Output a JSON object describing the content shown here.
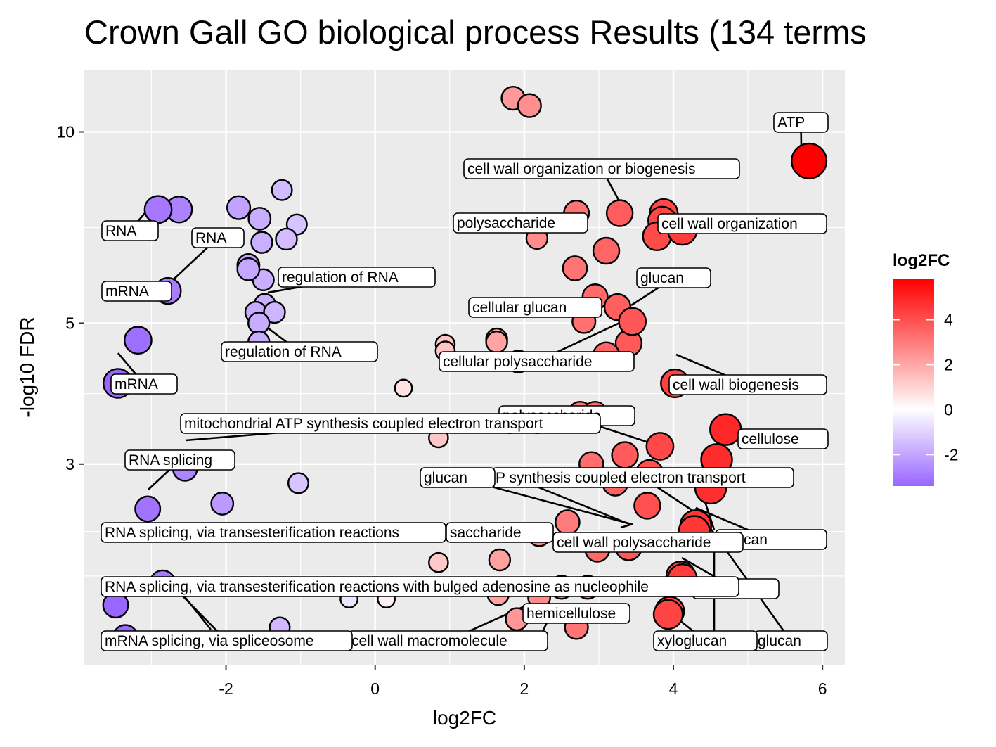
{
  "chart_data": {
    "type": "scatter",
    "title": "Crown Gall GO biological process Results (134 terms",
    "xlabel": "log2FC",
    "ylabel": "-log10 FDR",
    "x_ticks": [
      -2,
      0,
      2,
      4,
      6
    ],
    "y_ticks": [
      3,
      5,
      10
    ],
    "xlim": [
      -3.9,
      6.3
    ],
    "y_scale": "log",
    "ylim": [
      1.45,
      12.5
    ],
    "grid": true,
    "legend": {
      "title": "log2FC",
      "type": "colorbar",
      "ticks": [
        -2,
        0,
        2,
        4
      ],
      "range": [
        -3.4,
        5.8
      ],
      "low_color": "#9966ff",
      "mid_color": "#ffffff",
      "high_color": "#ff0000",
      "placement": "right"
    },
    "points": [
      {
        "x": 5.82,
        "y": 9.0,
        "size": 2.4
      },
      {
        "x": 1.85,
        "y": 11.3,
        "size": 1.2
      },
      {
        "x": 2.07,
        "y": 11.0,
        "size": 1.2
      },
      {
        "x": -2.91,
        "y": 7.55,
        "size": 1.6
      },
      {
        "x": -2.63,
        "y": 7.55,
        "size": 1.5
      },
      {
        "x": -1.83,
        "y": 7.6,
        "size": 1.2
      },
      {
        "x": -1.25,
        "y": 8.1,
        "size": 0.9
      },
      {
        "x": -1.55,
        "y": 7.3,
        "size": 1.1
      },
      {
        "x": -1.05,
        "y": 7.15,
        "size": 0.9
      },
      {
        "x": -1.52,
        "y": 6.7,
        "size": 1.0
      },
      {
        "x": -1.19,
        "y": 6.78,
        "size": 1.0
      },
      {
        "x": -2.78,
        "y": 5.62,
        "size": 1.5
      },
      {
        "x": -3.18,
        "y": 4.7,
        "size": 1.6
      },
      {
        "x": -3.45,
        "y": 4.02,
        "size": 1.8
      },
      {
        "x": -1.7,
        "y": 6.17,
        "size": 1.1
      },
      {
        "x": -1.7,
        "y": 6.08,
        "size": 1.1
      },
      {
        "x": -1.5,
        "y": 5.85,
        "size": 1.0
      },
      {
        "x": -1.48,
        "y": 5.35,
        "size": 1.0
      },
      {
        "x": -1.6,
        "y": 5.2,
        "size": 1.0
      },
      {
        "x": -1.35,
        "y": 5.2,
        "size": 1.0
      },
      {
        "x": -1.56,
        "y": 5.0,
        "size": 1.0
      },
      {
        "x": -1.56,
        "y": 4.67,
        "size": 1.0
      },
      {
        "x": 0.38,
        "y": 3.95,
        "size": 0.6
      },
      {
        "x": 0.94,
        "y": 4.63,
        "size": 0.8
      },
      {
        "x": 0.94,
        "y": 4.52,
        "size": 0.8
      },
      {
        "x": 1.63,
        "y": 4.72,
        "size": 1.0
      },
      {
        "x": 1.63,
        "y": 4.67,
        "size": 1.0
      },
      {
        "x": 1.92,
        "y": 4.35,
        "size": 1.1
      },
      {
        "x": 0.85,
        "y": 3.3,
        "size": 0.8
      },
      {
        "x": 1.8,
        "y": 3.5,
        "size": 1.2
      },
      {
        "x": 2.17,
        "y": 3.5,
        "size": 1.2
      },
      {
        "x": -2.05,
        "y": 2.6,
        "size": 1.1
      },
      {
        "x": -1.03,
        "y": 2.8,
        "size": 0.9
      },
      {
        "x": -2.55,
        "y": 2.95,
        "size": 1.3
      },
      {
        "x": -3.05,
        "y": 2.55,
        "size": 1.4
      },
      {
        "x": 2.7,
        "y": 7.45,
        "size": 1.4
      },
      {
        "x": 3.28,
        "y": 7.45,
        "size": 1.5
      },
      {
        "x": 3.87,
        "y": 7.45,
        "size": 1.7
      },
      {
        "x": 3.85,
        "y": 7.25,
        "size": 1.7
      },
      {
        "x": 4.12,
        "y": 7.0,
        "size": 1.8
      },
      {
        "x": 3.78,
        "y": 6.85,
        "size": 1.7
      },
      {
        "x": 2.17,
        "y": 6.8,
        "size": 1.0
      },
      {
        "x": 3.1,
        "y": 6.5,
        "size": 1.5
      },
      {
        "x": 2.68,
        "y": 6.1,
        "size": 1.3
      },
      {
        "x": 2.95,
        "y": 5.5,
        "size": 1.4
      },
      {
        "x": 3.25,
        "y": 5.3,
        "size": 1.5
      },
      {
        "x": 3.45,
        "y": 5.03,
        "size": 1.6
      },
      {
        "x": 2.8,
        "y": 5.03,
        "size": 1.2
      },
      {
        "x": 3.4,
        "y": 4.65,
        "size": 1.5
      },
      {
        "x": 3.1,
        "y": 4.45,
        "size": 1.5
      },
      {
        "x": 4.02,
        "y": 4.02,
        "size": 1.7
      },
      {
        "x": 2.75,
        "y": 3.6,
        "size": 1.3
      },
      {
        "x": 2.95,
        "y": 3.6,
        "size": 1.3
      },
      {
        "x": 4.7,
        "y": 3.4,
        "size": 2.0
      },
      {
        "x": 3.82,
        "y": 3.2,
        "size": 1.6
      },
      {
        "x": 4.58,
        "y": 3.05,
        "size": 2.0
      },
      {
        "x": 3.35,
        "y": 3.1,
        "size": 1.5
      },
      {
        "x": 2.9,
        "y": 3.0,
        "size": 1.3
      },
      {
        "x": 3.68,
        "y": 2.9,
        "size": 1.6
      },
      {
        "x": 3.22,
        "y": 2.8,
        "size": 1.4
      },
      {
        "x": 4.5,
        "y": 2.75,
        "size": 2.0
      },
      {
        "x": 3.65,
        "y": 2.58,
        "size": 1.5
      },
      {
        "x": 4.3,
        "y": 2.4,
        "size": 2.0
      },
      {
        "x": 4.28,
        "y": 2.35,
        "size": 2.0
      },
      {
        "x": 2.58,
        "y": 2.43,
        "size": 1.3
      },
      {
        "x": 2.2,
        "y": 2.32,
        "size": 1.1
      },
      {
        "x": 3.4,
        "y": 2.22,
        "size": 1.5
      },
      {
        "x": 2.98,
        "y": 2.2,
        "size": 1.3
      },
      {
        "x": 1.67,
        "y": 2.12,
        "size": 1.0
      },
      {
        "x": 0.85,
        "y": 2.1,
        "size": 0.8
      },
      {
        "x": 4.1,
        "y": 2.0,
        "size": 1.8
      },
      {
        "x": 4.12,
        "y": 1.98,
        "size": 1.8
      },
      {
        "x": -2.85,
        "y": 1.95,
        "size": 1.4
      },
      {
        "x": -3.48,
        "y": 1.8,
        "size": 1.4
      },
      {
        "x": 2.5,
        "y": 1.92,
        "size": 1.2
      },
      {
        "x": 2.85,
        "y": 1.92,
        "size": 1.2
      },
      {
        "x": 2.2,
        "y": 1.85,
        "size": 1.1
      },
      {
        "x": 1.65,
        "y": 1.87,
        "size": 1.0
      },
      {
        "x": -0.35,
        "y": 1.84,
        "size": 0.6
      },
      {
        "x": 0.15,
        "y": 1.84,
        "size": 0.6
      },
      {
        "x": 3.95,
        "y": 1.76,
        "size": 1.8
      },
      {
        "x": 3.93,
        "y": 1.74,
        "size": 1.8
      },
      {
        "x": 1.9,
        "y": 1.71,
        "size": 1.1
      },
      {
        "x": 2.7,
        "y": 1.66,
        "size": 1.2
      },
      {
        "x": -1.28,
        "y": 1.66,
        "size": 0.9
      },
      {
        "x": -3.35,
        "y": 1.6,
        "size": 1.4
      }
    ],
    "labels": [
      {
        "text": "ATP"
      },
      {
        "text": "cell wall organization or biogenesis"
      },
      {
        "text": "RNA"
      },
      {
        "text": "RNA"
      },
      {
        "text": "polysaccharide"
      },
      {
        "text": "cell wall organization"
      },
      {
        "text": "mRNA"
      },
      {
        "text": "regulation of RNA"
      },
      {
        "text": "glucan"
      },
      {
        "text": "cellular glucan"
      },
      {
        "text": "regulation of RNA"
      },
      {
        "text": "cellular polysaccharide"
      },
      {
        "text": "mRNA"
      },
      {
        "text": "cell wall biogenesis"
      },
      {
        "text": "polysaccharide"
      },
      {
        "text": "mitochondrial ATP synthesis coupled electron transport"
      },
      {
        "text": "cellulose"
      },
      {
        "text": "RNA splicing"
      },
      {
        "text": "P synthesis coupled electron transport"
      },
      {
        "text": "glucan"
      },
      {
        "text": "saccharide"
      },
      {
        "text": "RNA splicing, via transesterification reactions"
      },
      {
        "text": "-glucan"
      },
      {
        "text": "cell wall polysaccharide"
      },
      {
        "text": "se"
      },
      {
        "text": "RNA splicing, via transesterification reactions with bulged adenosine as nucleophile"
      },
      {
        "text": "hemicellulose"
      },
      {
        "text": "glucan"
      },
      {
        "text": "cell wall macromolecule"
      },
      {
        "text": "xyloglucan"
      },
      {
        "text": "mRNA splicing, via spliceosome"
      }
    ]
  }
}
